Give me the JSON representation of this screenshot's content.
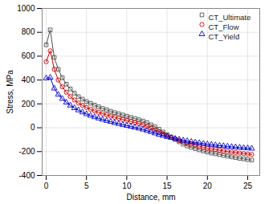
{
  "chart_data": {
    "type": "line",
    "xlabel": "Distance, mm",
    "ylabel": "Stress, MPa",
    "xlim": [
      -0.5,
      26.5
    ],
    "ylim": [
      -400,
      1000
    ],
    "xticks": [
      0,
      5,
      10,
      15,
      20,
      25
    ],
    "yticks": [
      -400,
      -200,
      0,
      200,
      400,
      600,
      800,
      1000
    ],
    "grid": true,
    "legend": "upper right",
    "x": [
      0.0,
      0.5,
      1.0,
      1.5,
      2.0,
      2.5,
      3.0,
      3.5,
      4.0,
      4.5,
      5.0,
      5.5,
      6.0,
      6.5,
      7.0,
      7.5,
      8.0,
      8.5,
      9.0,
      9.5,
      10.0,
      10.5,
      11.0,
      11.5,
      12.0,
      12.5,
      13.0,
      13.5,
      14.0,
      14.5,
      15.0,
      15.5,
      16.0,
      16.5,
      17.0,
      17.5,
      18.0,
      18.5,
      19.0,
      19.5,
      20.0,
      20.5,
      21.0,
      21.5,
      22.0,
      22.5,
      23.0,
      23.5,
      24.0,
      24.5,
      25.0,
      25.5
    ],
    "series": [
      {
        "name": "CT_Ultimate",
        "color": "#505050",
        "marker": "square",
        "values": [
          695,
          820,
          590,
          490,
          420,
          365,
          325,
          290,
          260,
          240,
          220,
          205,
          190,
          175,
          162,
          150,
          138,
          127,
          117,
          107,
          97,
          87,
          77,
          67,
          56,
          42,
          25,
          8,
          -12,
          -35,
          -57,
          -78,
          -98,
          -118,
          -138,
          -153,
          -165,
          -175,
          -185,
          -195,
          -203,
          -212,
          -218,
          -225,
          -232,
          -238,
          -244,
          -250,
          -256,
          -261,
          -266,
          -271
        ]
      },
      {
        "name": "CT_Flow",
        "color": "#cc0000",
        "marker": "circle",
        "values": [
          553,
          645,
          490,
          400,
          343,
          298,
          262,
          233,
          208,
          188,
          170,
          155,
          141,
          129,
          118,
          108,
          98,
          88,
          79,
          70,
          62,
          53,
          44,
          36,
          25,
          12,
          -2,
          -17,
          -34,
          -50,
          -66,
          -80,
          -93,
          -107,
          -119,
          -129,
          -138,
          -147,
          -156,
          -164,
          -171,
          -177,
          -183,
          -188,
          -194,
          -199,
          -203,
          -207,
          -212,
          -216,
          -220,
          -224
        ]
      },
      {
        "name": "CT_Yield",
        "color": "#0000cc",
        "marker": "triangle",
        "values": [
          415,
          420,
          330,
          278,
          243,
          212,
          187,
          165,
          147,
          130,
          115,
          102,
          90,
          79,
          69,
          59,
          50,
          41,
          33,
          25,
          18,
          10,
          3,
          -5,
          -14,
          -24,
          -35,
          -46,
          -57,
          -67,
          -76,
          -84,
          -92,
          -99,
          -106,
          -112,
          -118,
          -123,
          -128,
          -133,
          -138,
          -142,
          -146,
          -150,
          -153,
          -157,
          -160,
          -163,
          -166,
          -169,
          -171,
          -174
        ]
      }
    ]
  }
}
